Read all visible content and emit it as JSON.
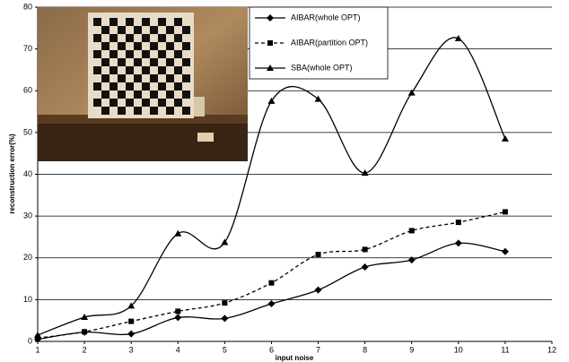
{
  "chart_data": {
    "type": "line",
    "x_label": "input noise",
    "y_label": "reconstruction error(%)",
    "x": [
      1,
      2,
      3,
      4,
      5,
      6,
      7,
      8,
      9,
      10,
      11
    ],
    "series": [
      {
        "name": "AIBAR(whole OPT)",
        "color": "#000000",
        "marker": "diamond",
        "line_style": "solid",
        "values": [
          0.5,
          2.2,
          1.8,
          5.7,
          5.5,
          9,
          12.3,
          17.8,
          19.5,
          23.5,
          21.5
        ]
      },
      {
        "name": "AIBAR(partition OPT)",
        "color": "#000000",
        "marker": "square",
        "line_style": "dashed",
        "values": [
          0.8,
          2.3,
          4.8,
          7.2,
          9.2,
          14,
          20.8,
          22,
          26.5,
          28.5,
          31
        ]
      },
      {
        "name": "SBA(whole OPT)",
        "color": "#000000",
        "marker": "triangle",
        "line_style": "solid",
        "values": [
          1.5,
          5.8,
          8.5,
          25.8,
          23.7,
          57.5,
          58,
          40.3,
          59.5,
          72.5,
          48.5
        ]
      }
    ],
    "xlim": [
      1,
      12
    ],
    "xticks": [
      1,
      2,
      3,
      4,
      5,
      6,
      7,
      8,
      9,
      10,
      11,
      12
    ],
    "ylim": [
      0,
      80
    ],
    "yticks": [
      0,
      10,
      20,
      30,
      40,
      50,
      60,
      70,
      80
    ],
    "grid": true,
    "smooth": true,
    "legend": "top"
  }
}
